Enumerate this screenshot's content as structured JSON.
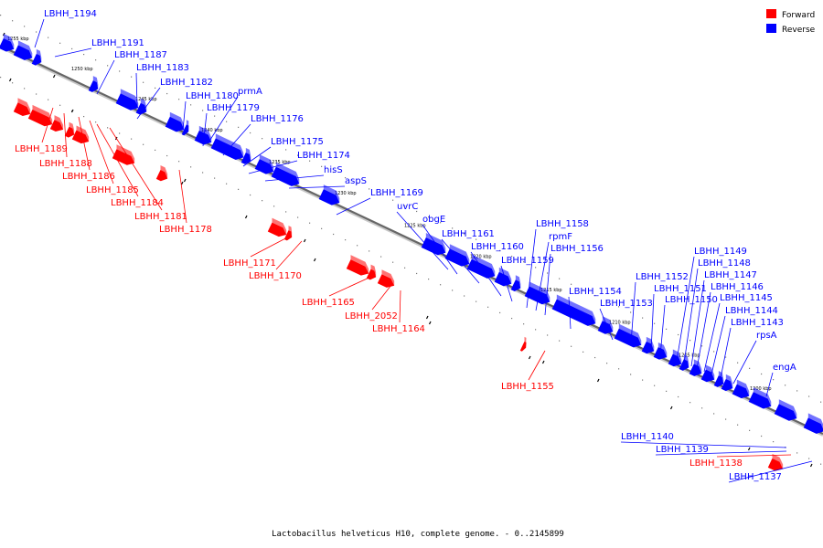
{
  "caption": "Lactobacillus helveticus H10, complete genome. - 0..2145899",
  "legend": [
    {
      "label": "Forward",
      "color": "#ff0000"
    },
    {
      "label": "Reverse",
      "color": "#0000ff"
    }
  ],
  "colors": {
    "forward": "#ff0000",
    "reverse": "#0000ff",
    "axis": "#666666"
  },
  "ticks": [
    "1255 kbp",
    "1250 kbp",
    "1245 kbp",
    "1240 kbp",
    "1235 kbp",
    "1230 kbp",
    "1225 kbp",
    "1220 kbp",
    "1215 kbp",
    "1210 kbp",
    "1205 kbp",
    "1200 kbp"
  ],
  "genes": {
    "reverse": [
      "LBHH_1194",
      "LBHH_1191",
      "LBHH_1187",
      "LBHH_1183",
      "LBHH_1182",
      "LBHH_1180",
      "prmA",
      "LBHH_1179",
      "LBHH_1176",
      "LBHH_1175",
      "LBHH_1174",
      "hisS",
      "aspS",
      "LBHH_1169",
      "uvrC",
      "obgE",
      "LBHH_1161",
      "LBHH_1160",
      "LBHH_1159",
      "LBHH_1158",
      "rpmF",
      "LBHH_1156",
      "LBHH_1154",
      "LBHH_1153",
      "LBHH_1152",
      "LBHH_1151",
      "LBHH_1150",
      "LBHH_1149",
      "LBHH_1148",
      "LBHH_1147",
      "LBHH_1146",
      "LBHH_1145",
      "LBHH_1144",
      "LBHH_1143",
      "rpsA",
      "engA",
      "LBHH_1140",
      "LBHH_1139",
      "LBHH_1137"
    ],
    "forward": [
      "LBHH_1189",
      "LBHH_1188",
      "LBHH_1186",
      "LBHH_1185",
      "LBHH_1184",
      "LBHH_1181",
      "LBHH_1178",
      "LBHH_1171",
      "LBHH_1170",
      "LBHH_1165",
      "LBHH_2052",
      "LBHH_1164",
      "LBHH_1155",
      "LBHH_1138"
    ]
  }
}
